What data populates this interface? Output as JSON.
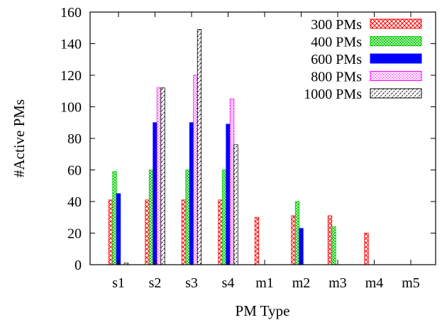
{
  "chart_data": {
    "type": "bar",
    "xlabel": "PM Type",
    "ylabel": "#Active PMs",
    "ylim": [
      0,
      160
    ],
    "yticks": [
      0,
      20,
      40,
      60,
      80,
      100,
      120,
      140,
      160
    ],
    "grid": false,
    "legend_position": "top-right",
    "categories": [
      "s1",
      "s2",
      "s3",
      "s4",
      "m1",
      "m2",
      "m3",
      "m4",
      "m5"
    ],
    "series": [
      {
        "name": "300 PMs",
        "color": "#ff0000",
        "pattern": "crosshatch",
        "values": [
          41,
          41,
          41,
          41,
          30,
          31,
          31,
          20,
          0
        ]
      },
      {
        "name": "400 PMs",
        "color": "#00cc00",
        "pattern": "dense-crosshatch",
        "values": [
          59,
          60,
          60,
          60,
          0,
          40,
          24,
          0,
          0
        ]
      },
      {
        "name": "600 PMs",
        "color": "#0000ff",
        "pattern": "solid",
        "values": [
          45,
          90,
          90,
          89,
          0,
          23,
          0,
          0,
          0
        ]
      },
      {
        "name": "800 PMs",
        "color": "#ff00ff",
        "pattern": "dotted",
        "values": [
          0,
          112,
          120,
          105,
          0,
          0,
          0,
          0,
          0
        ]
      },
      {
        "name": "1000 PMs",
        "color": "#000000",
        "pattern": "diagonal-dashed",
        "values": [
          1,
          112,
          149,
          76,
          0,
          0,
          0,
          0,
          0
        ]
      }
    ]
  }
}
